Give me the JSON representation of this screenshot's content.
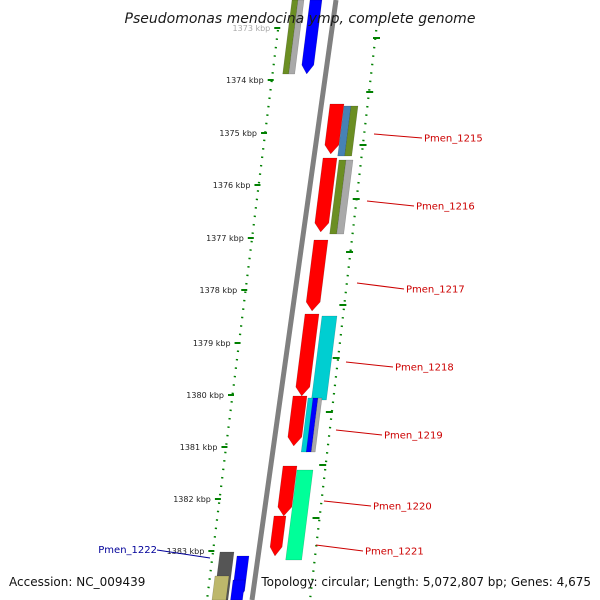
{
  "title": "Pseudomonas mendocina ymp, complete genome",
  "footer": {
    "accession": "Accession: NC_009439",
    "topology": "Topology: circular; Length: 5,072,807 bp; Genes: 4,675"
  },
  "kbp_ticks": [
    {
      "label": "1373 kbp",
      "faded": true
    },
    {
      "label": "1374 kbp"
    },
    {
      "label": "1375 kbp"
    },
    {
      "label": "1376 kbp"
    },
    {
      "label": "1377 kbp"
    },
    {
      "label": "1378 kbp"
    },
    {
      "label": "1379 kbp"
    },
    {
      "label": "1380 kbp"
    },
    {
      "label": "1381 kbp"
    },
    {
      "label": "1382 kbp"
    },
    {
      "label": "1383 kbp"
    }
  ],
  "gene_labels": [
    {
      "name": "Pmen_1215",
      "color": "#cc0000"
    },
    {
      "name": "Pmen_1216",
      "color": "#cc0000"
    },
    {
      "name": "Pmen_1217",
      "color": "#cc0000"
    },
    {
      "name": "Pmen_1218",
      "color": "#cc0000"
    },
    {
      "name": "Pmen_1219",
      "color": "#cc0000"
    },
    {
      "name": "Pmen_1220",
      "color": "#cc0000"
    },
    {
      "name": "Pmen_1221",
      "color": "#cc0000"
    },
    {
      "name": "Pmen_1222",
      "color": "#000099"
    }
  ],
  "colors": {
    "backbone": "#808080",
    "gene_red": "#ff0000",
    "cog_olive": "#6b8e23",
    "cog_grey": "#a9a9a9",
    "cog_blue": "#0000ff",
    "cog_cyan": "#00ced1",
    "cog_teal": "#00ff99",
    "cog_steel": "#4682b4",
    "dotted_ring": "#008000",
    "label_red": "#cc0000",
    "label_blue": "#000099"
  }
}
